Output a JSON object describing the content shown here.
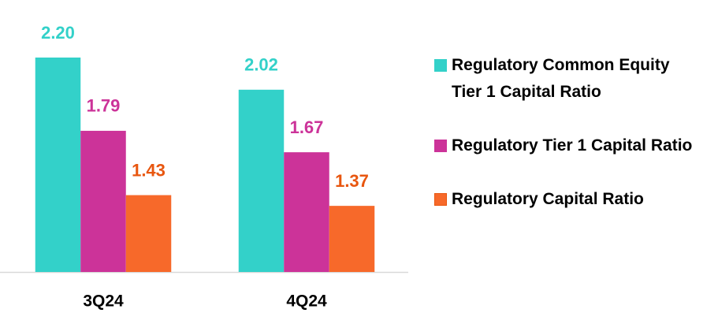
{
  "chart_data": {
    "type": "bar",
    "categories": [
      "3Q24",
      "4Q24"
    ],
    "series": [
      {
        "name": "Regulatory Common Equity Tier 1 Capital Ratio",
        "color": "#33d1c9",
        "label_color": "#33d1c9",
        "values": [
          2.2,
          2.02
        ],
        "value_labels": [
          "2.20",
          "2.02"
        ]
      },
      {
        "name": "Regulatory Tier 1 Capital Ratio",
        "color": "#cc3399",
        "label_color": "#cc3399",
        "values": [
          1.79,
          1.67
        ]
      },
      {
        "name": "Regulatory Capital Ratio",
        "color": "#f7692a",
        "label_color": "#e8560f",
        "values": [
          1.43,
          1.37
        ]
      }
    ],
    "ylim": [
      1.0,
      2.5
    ],
    "legend": "right"
  }
}
